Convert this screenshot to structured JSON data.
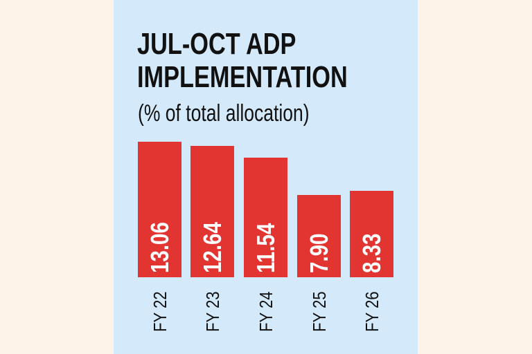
{
  "chart_data": {
    "type": "bar",
    "title": "JUL-OCT ADP IMPLEMENTATION",
    "title_lines": [
      "JUL-OCT ADP",
      "IMPLEMENTATION"
    ],
    "subtitle": "(% of total allocation)",
    "categories": [
      "FY 22",
      "FY 23",
      "FY 24",
      "FY 25",
      "FY 26"
    ],
    "values": [
      13.06,
      12.64,
      11.54,
      7.9,
      8.33
    ],
    "value_labels": [
      "13.06",
      "12.64",
      "11.54",
      "7.90",
      "8.33"
    ],
    "xlabel": "",
    "ylabel": "% of total allocation",
    "grid": false,
    "legend": null,
    "colors": {
      "bar": "#e23532",
      "panel_background": "#d4e9fa",
      "page_background": "#fdf3e8",
      "text": "#111111",
      "bar_label": "#ffffff"
    }
  }
}
